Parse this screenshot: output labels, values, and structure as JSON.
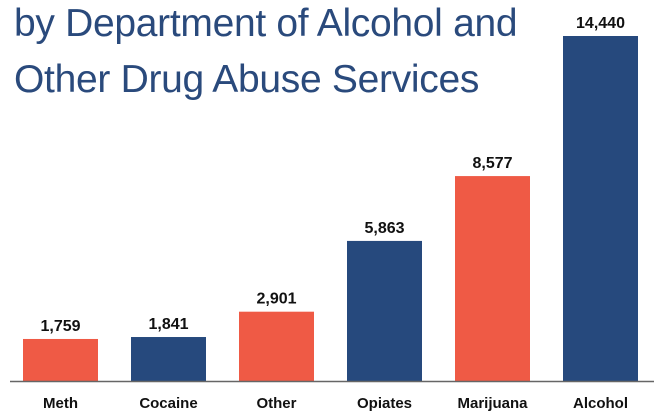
{
  "title": {
    "line1": "by Department of Alcohol and",
    "line2": "Other Drug Abuse Services"
  },
  "colors": {
    "title": "#2a4a7c",
    "red": "#ef5a45",
    "blue": "#26497d",
    "axis": "#666666"
  },
  "chart_data": {
    "type": "bar",
    "categories": [
      "Meth",
      "Cocaine",
      "Other",
      "Opiates",
      "Marijuana",
      "Alcohol"
    ],
    "values": [
      1759,
      1841,
      2901,
      5863,
      8577,
      14440
    ],
    "value_labels": [
      "1,759",
      "1,841",
      "2,901",
      "5,863",
      "8,577",
      "14,440"
    ],
    "bar_colors": [
      "#ef5a45",
      "#26497d",
      "#ef5a45",
      "#26497d",
      "#ef5a45",
      "#26497d"
    ],
    "title": "",
    "xlabel": "",
    "ylabel": "",
    "ylim": [
      0,
      14440
    ],
    "grid": false,
    "legend": "none"
  }
}
